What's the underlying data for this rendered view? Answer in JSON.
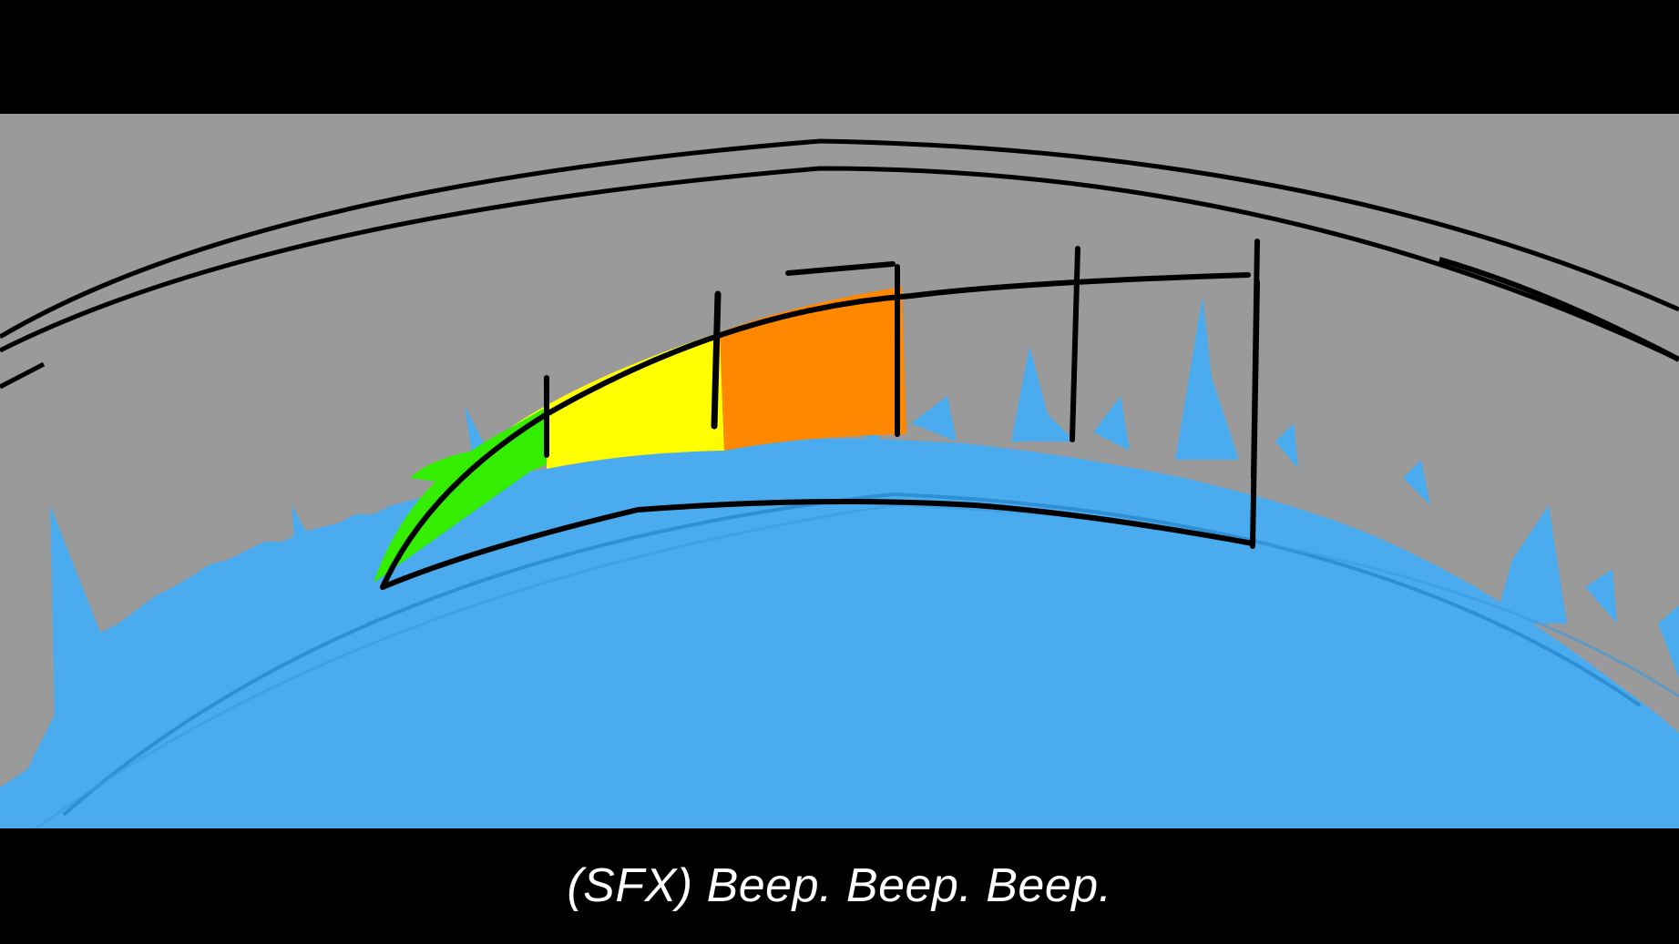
{
  "caption": {
    "text": "(SFX) Beep. Beep. Beep."
  },
  "gauge": {
    "segments": 6,
    "filled_segments": 3,
    "segment_colors": [
      "#33ee00",
      "#ffff00",
      "#ff8800",
      "#9a9a9a",
      "#9a9a9a",
      "#9a9a9a"
    ]
  },
  "colors": {
    "letterbox": "#000000",
    "sky": "#9a9a9a",
    "planet": "#4aabee",
    "outline": "#000000",
    "caption_text": "#ffffff"
  }
}
